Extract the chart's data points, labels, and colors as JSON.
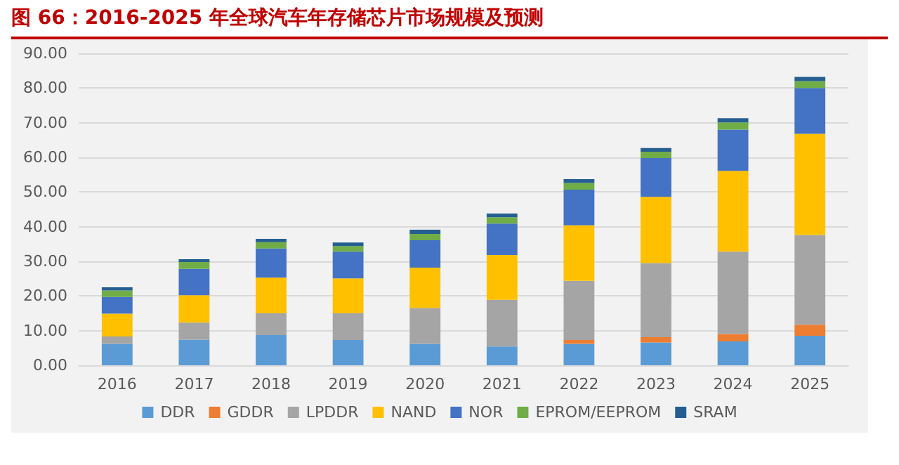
{
  "chart_data": {
    "type": "bar",
    "stacked": true,
    "title": "图 66：2016-2025 年全球汽车年存储芯片市场规模及预测",
    "categories": [
      "2016",
      "2017",
      "2018",
      "2019",
      "2020",
      "2021",
      "2022",
      "2023",
      "2024",
      "2025"
    ],
    "series": [
      {
        "name": "DDR",
        "color": "#5b9bd5",
        "values": [
          6.2,
          7.4,
          8.7,
          7.3,
          6.2,
          5.4,
          6.2,
          6.6,
          6.9,
          8.5
        ]
      },
      {
        "name": "GDDR",
        "color": "#ed7d31",
        "values": [
          0,
          0,
          0,
          0,
          0,
          0,
          1.1,
          1.5,
          2.1,
          3.2
        ]
      },
      {
        "name": "LPDDR",
        "color": "#a5a5a5",
        "values": [
          2.1,
          4.9,
          6.3,
          7.7,
          10.3,
          13.5,
          17.1,
          21.4,
          23.8,
          25.9
        ]
      },
      {
        "name": "NAND",
        "color": "#ffc000",
        "values": [
          6.6,
          7.9,
          10.3,
          10.1,
          11.7,
          12.9,
          16.0,
          19.1,
          23.3,
          29.2
        ]
      },
      {
        "name": "NOR",
        "color": "#4472c4",
        "values": [
          4.8,
          7.6,
          8.4,
          7.7,
          7.9,
          9.1,
          10.3,
          11.2,
          11.9,
          13.2
        ]
      },
      {
        "name": "EPROM/EEPROM",
        "color": "#70ad47",
        "values": [
          1.9,
          2.0,
          1.8,
          1.6,
          1.8,
          1.8,
          1.9,
          1.8,
          2.1,
          2.0
        ]
      },
      {
        "name": "SRAM",
        "color": "#255e91",
        "values": [
          0.9,
          0.8,
          1.0,
          1.0,
          1.2,
          1.1,
          1.1,
          1.1,
          1.2,
          1.2
        ]
      }
    ],
    "ylim": [
      0,
      90
    ],
    "yticks": [
      {
        "value": 0,
        "label": "0.00"
      },
      {
        "value": 10,
        "label": "10.00"
      },
      {
        "value": 20,
        "label": "20.00"
      },
      {
        "value": 30,
        "label": "30.00"
      },
      {
        "value": 40,
        "label": "40.00"
      },
      {
        "value": 50,
        "label": "50.00"
      },
      {
        "value": 60,
        "label": "60.00"
      },
      {
        "value": 70,
        "label": "70.00"
      },
      {
        "value": 80,
        "label": "80.00"
      },
      {
        "value": 90,
        "label": "90.00"
      }
    ],
    "grid": "y",
    "legend": "bottom"
  }
}
